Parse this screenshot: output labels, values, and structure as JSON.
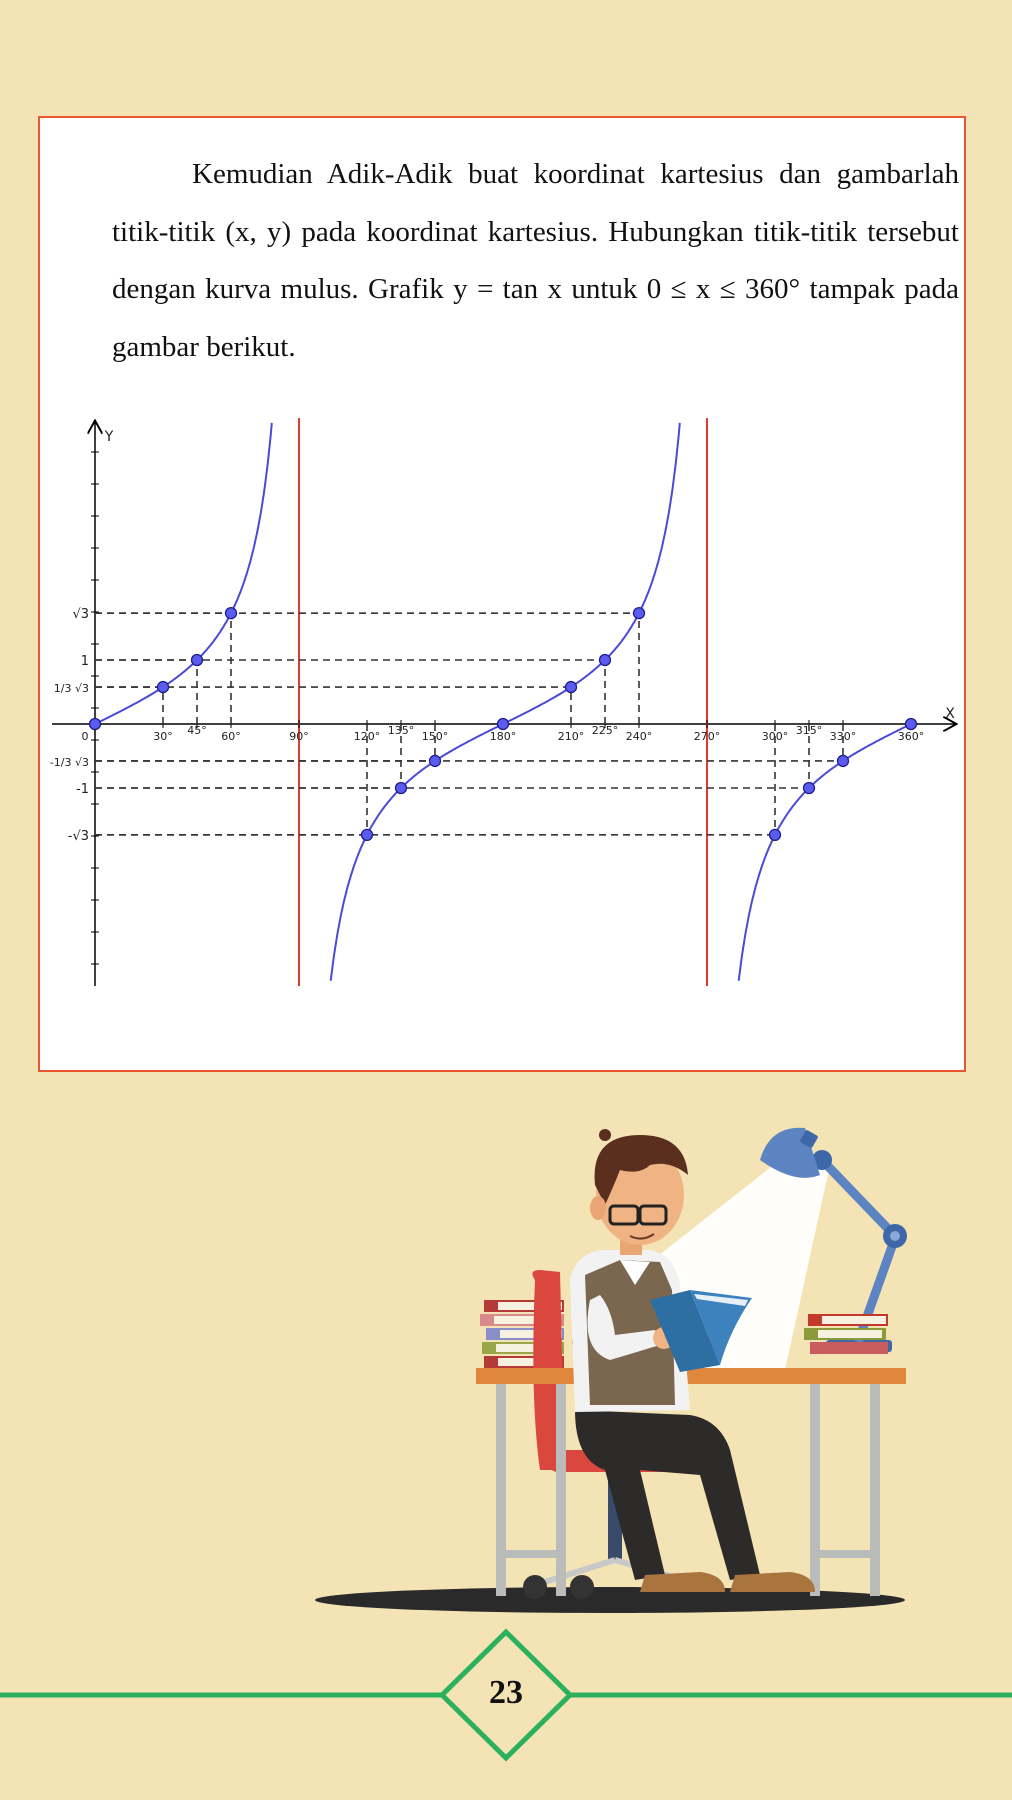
{
  "text": {
    "paragraph": "Kemudian Adik-Adik buat koordinat kartesius dan gambarlah titik-titik (x, y) pada koordinat kartesius. Hubungkan titik-titik tersebut dengan kurva mulus. Grafik y = tan x untuk 0 ≤ x ≤ 360° tampak pada gambar berikut."
  },
  "chart_data": {
    "type": "line",
    "xlabel": "X",
    "ylabel": "Y",
    "xlim": [
      0,
      360
    ],
    "x_ticks": [
      "0",
      "30°",
      "45°",
      "60°",
      "90°",
      "120°",
      "135°",
      "150°",
      "180°",
      "210°",
      "225°",
      "240°",
      "270°",
      "300°",
      "315°",
      "330°",
      "360°"
    ],
    "y_ticks": [
      "√3",
      "1",
      "1/3 √3",
      "-1/3 √3",
      "-1",
      "-√3"
    ],
    "asymptotes": [
      90,
      270
    ],
    "points": [
      {
        "x": 0,
        "y": 0
      },
      {
        "x": 30,
        "y": 0.577
      },
      {
        "x": 45,
        "y": 1
      },
      {
        "x": 60,
        "y": 1.732
      },
      {
        "x": 120,
        "y": -1.732
      },
      {
        "x": 135,
        "y": -1
      },
      {
        "x": 150,
        "y": -0.577
      },
      {
        "x": 180,
        "y": 0
      },
      {
        "x": 210,
        "y": 0.577
      },
      {
        "x": 225,
        "y": 1
      },
      {
        "x": 240,
        "y": 1.732
      },
      {
        "x": 300,
        "y": -1.732
      },
      {
        "x": 315,
        "y": -1
      },
      {
        "x": 330,
        "y": -0.577
      },
      {
        "x": 360,
        "y": 0
      }
    ],
    "curve_color": "#4a4ad6",
    "asymptote_color": "#e03b2f",
    "grid": false
  },
  "page_number": "23",
  "colors": {
    "background": "#f3e3b5",
    "frame_border": "#e8572e",
    "footer_line": "#2bb05e"
  },
  "illustration": {
    "icon": "man-reading-at-desk-illustration"
  }
}
